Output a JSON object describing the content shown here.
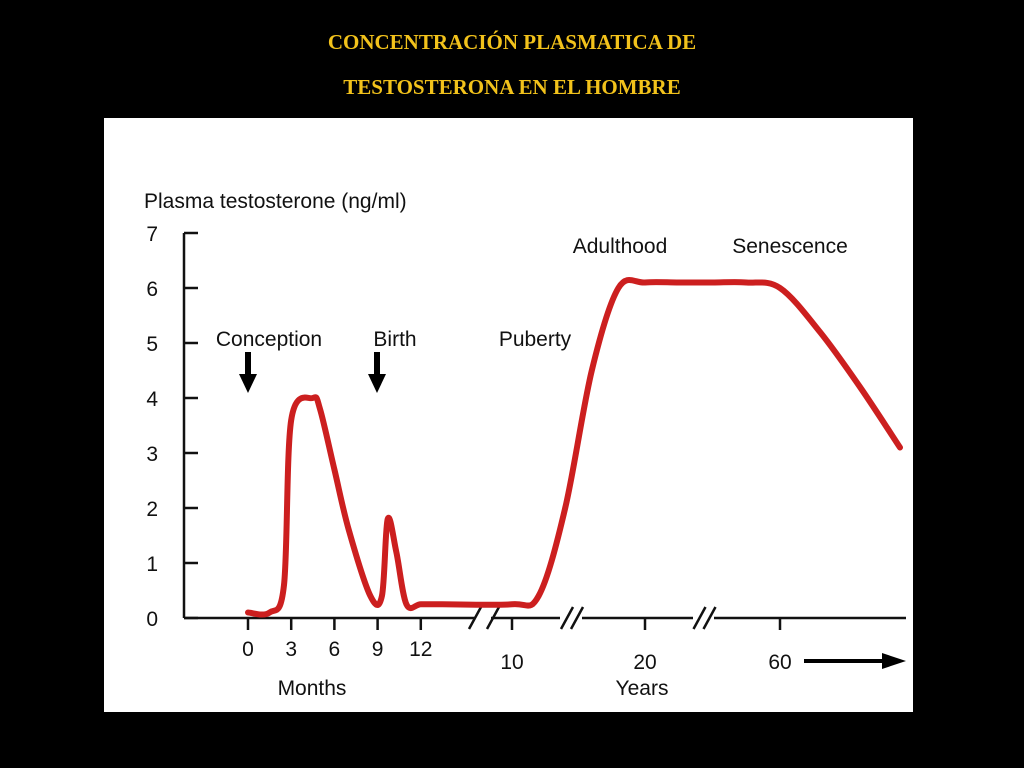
{
  "slide": {
    "title_line1": "CONCENTRACIÓN  PLASMATICA DE",
    "title_line2": "TESTOSTERONA EN EL HOMBRE"
  },
  "chart_data": {
    "type": "line",
    "ylabel": "Plasma testosterone (ng/ml)",
    "ylim": [
      0,
      7
    ],
    "y_ticks": [
      0,
      1,
      2,
      3,
      4,
      5,
      6,
      7
    ],
    "axis_segments": [
      {
        "unit_label": "Months",
        "ticks": [
          0,
          3,
          6,
          9,
          12
        ]
      },
      {
        "unit_label": "Years",
        "ticks": [
          10,
          20,
          60
        ]
      }
    ],
    "annotations": [
      {
        "label": "Conception",
        "arrow": true
      },
      {
        "label": "Birth",
        "arrow": true
      },
      {
        "label": "Puberty",
        "arrow": false
      },
      {
        "label": "Adulthood",
        "arrow": false
      },
      {
        "label": "Senescence",
        "arrow": false
      }
    ],
    "series": [
      {
        "color": "#cc1f1f",
        "segments": [
          {
            "axis": "Months",
            "x": [
              0,
              1.5,
              2.5,
              3,
              4.5,
              5,
              6,
              7,
              8.5,
              9.3,
              9.7,
              10.3,
              11,
              12,
              13.5
            ],
            "y": [
              0.1,
              0.1,
              0.6,
              3.6,
              4.0,
              3.8,
              2.7,
              1.6,
              0.4,
              0.4,
              1.8,
              1.2,
              0.25,
              0.25,
              0.25
            ]
          },
          {
            "axis": "Years",
            "x": [
              10,
              12,
              14,
              16,
              18,
              20,
              30,
              40,
              50,
              60,
              70,
              80,
              90
            ],
            "y": [
              0.25,
              0.4,
              2.0,
              4.5,
              6.0,
              6.1,
              6.1,
              6.1,
              6.1,
              6.0,
              5.2,
              4.2,
              3.1
            ]
          }
        ]
      }
    ],
    "x_direction_arrow": true,
    "grid": false,
    "legend": "none"
  }
}
